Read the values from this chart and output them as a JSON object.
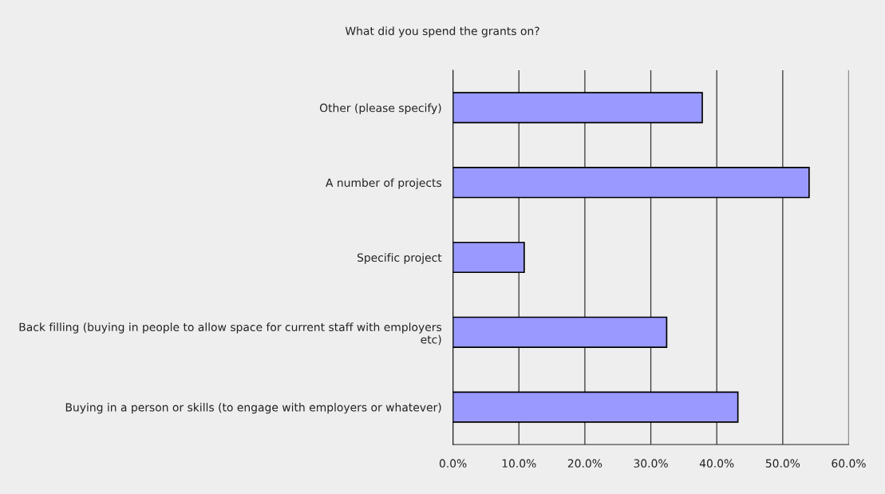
{
  "chart_data": {
    "type": "bar",
    "orientation": "horizontal",
    "title": "What did you spend the grants on?",
    "categories": [
      "Other (please specify)",
      "A number of projects",
      "Specific project",
      "Back filling (buying in people to allow space for current staff with employers etc)",
      "Buying in a person or skills (to engage with employers or whatever)"
    ],
    "values": [
      37.8,
      54.0,
      10.8,
      32.4,
      43.2
    ],
    "color": "#9999ff",
    "xlim": [
      0,
      60
    ],
    "xticks": [
      {
        "value": 0,
        "label": "0.0%"
      },
      {
        "value": 10,
        "label": "10.0%"
      },
      {
        "value": 20,
        "label": "20.0%"
      },
      {
        "value": 30,
        "label": "30.0%"
      },
      {
        "value": 40,
        "label": "40.0%"
      },
      {
        "value": 50,
        "label": "50.0%"
      },
      {
        "value": 60,
        "label": "60.0%"
      }
    ],
    "grid": "x"
  }
}
